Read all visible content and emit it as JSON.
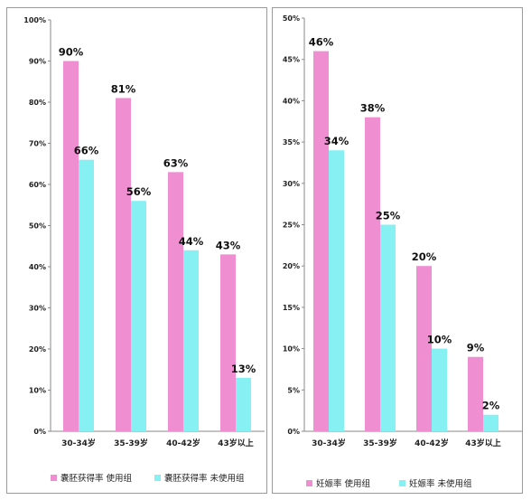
{
  "chart_data": [
    {
      "type": "bar",
      "categories": [
        "30-34岁",
        "35-39岁",
        "40-42岁",
        "43岁以上"
      ],
      "yticks": [
        "0%",
        "10%",
        "20%",
        "30%",
        "40%",
        "50%",
        "60%",
        "70%",
        "80%",
        "90%",
        "100%"
      ],
      "ylim": [
        0,
        100
      ],
      "grid": false,
      "legend_position": "bottom",
      "series": [
        {
          "name": "囊胚获得率 使用组",
          "color": "#f08ed2",
          "values": [
            90,
            81,
            63,
            43
          ],
          "labels": [
            "90%",
            "81%",
            "63%",
            "43%"
          ]
        },
        {
          "name": "囊胚获得率 未使用组",
          "color": "#86f0f3",
          "values": [
            66,
            56,
            44,
            13
          ],
          "labels": [
            "66%",
            "56%",
            "44%",
            "13%"
          ]
        }
      ]
    },
    {
      "type": "bar",
      "categories": [
        "30-34岁",
        "35-39岁",
        "40-42岁",
        "43岁以上"
      ],
      "yticks": [
        "0%",
        "5%",
        "10%",
        "15%",
        "20%",
        "25%",
        "30%",
        "35%",
        "40%",
        "45%",
        "50%"
      ],
      "ylim": [
        0,
        50
      ],
      "grid": false,
      "legend_position": "bottom",
      "series": [
        {
          "name": "妊娠率 使用组",
          "color": "#f08ed2",
          "values": [
            46,
            38,
            20,
            9
          ],
          "labels": [
            "46%",
            "38%",
            "20%",
            "9%"
          ]
        },
        {
          "name": "妊娠率 未使用组",
          "color": "#86f0f3",
          "values": [
            34,
            25,
            10,
            2
          ],
          "labels": [
            "34%",
            "25%",
            "10%",
            "2%"
          ]
        }
      ]
    }
  ]
}
